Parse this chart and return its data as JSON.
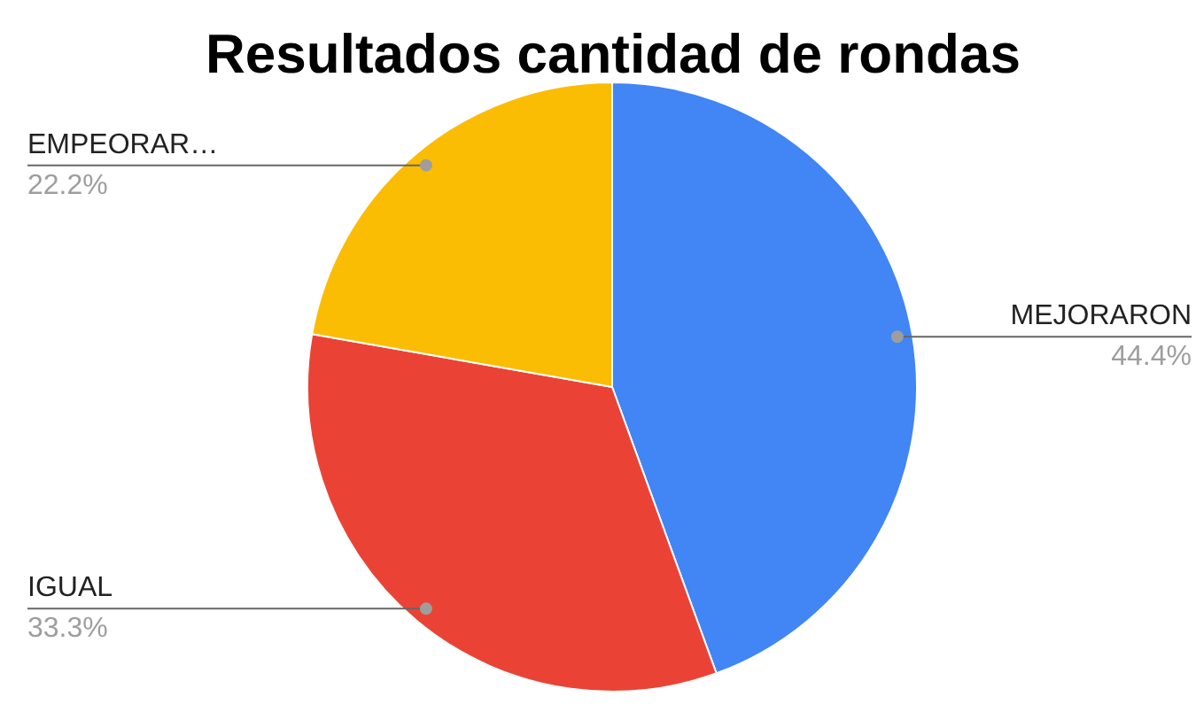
{
  "chart_data": {
    "type": "pie",
    "title": "Resultados cantidad de rondas",
    "categories": [
      "MEJORARON",
      "IGUAL",
      "EMPEORAR…"
    ],
    "values": [
      44.4,
      33.3,
      22.2
    ],
    "colors": [
      "#4285f4",
      "#ea4335",
      "#fbbc04"
    ],
    "value_labels": [
      "44.4%",
      "33.3%",
      "22.2%"
    ]
  }
}
